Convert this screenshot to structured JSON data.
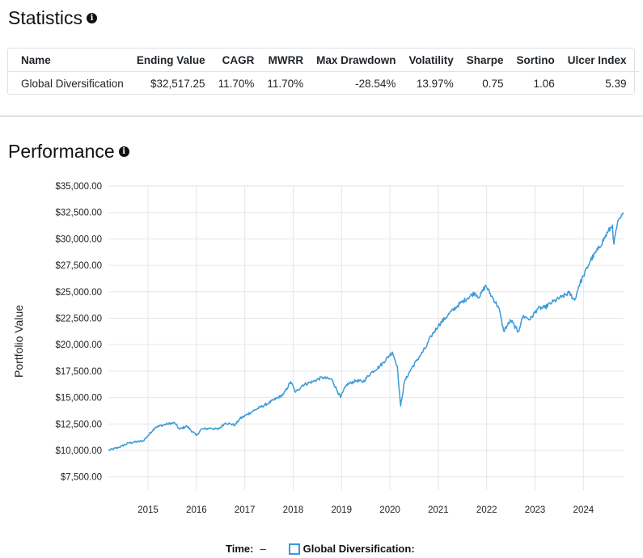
{
  "statistics": {
    "title": "Statistics",
    "headers": [
      "Name",
      "Ending Value",
      "CAGR",
      "MWRR",
      "Max Drawdown",
      "Volatility",
      "Sharpe",
      "Sortino",
      "Ulcer Index"
    ],
    "rows": [
      [
        "Global Diversification",
        "$32,517.25",
        "11.70%",
        "11.70%",
        "-28.54%",
        "13.97%",
        "0.75",
        "1.06",
        "5.39"
      ]
    ]
  },
  "performance": {
    "title": "Performance",
    "legend": {
      "time_label": "Time:",
      "time_value": "–",
      "series_label": "Global Diversification:"
    }
  },
  "chart_data": {
    "type": "line",
    "ylabel": "Portfolio Value",
    "xlabel": "",
    "ylim": [
      6250,
      35000
    ],
    "yticks": [
      7500,
      10000,
      12500,
      15000,
      17500,
      20000,
      22500,
      25000,
      27500,
      30000,
      32500,
      35000
    ],
    "ytick_labels": [
      "$7,500.00",
      "$10,000.00",
      "$12,500.00",
      "$15,000.00",
      "$17,500.00",
      "$20,000.00",
      "$22,500.00",
      "$25,000.00",
      "$27,500.00",
      "$30,000.00",
      "$32,500.00",
      "$35,000.00"
    ],
    "xlim": [
      2014.18,
      2024.83
    ],
    "xticks": [
      2015,
      2016,
      2017,
      2018,
      2019,
      2020,
      2021,
      2022,
      2023,
      2024
    ],
    "grid": true,
    "color": "#3a9ad9",
    "series": [
      {
        "name": "Global Diversification",
        "x": [
          2014.18,
          2014.4,
          2014.6,
          2014.9,
          2015.0,
          2015.15,
          2015.4,
          2015.55,
          2015.65,
          2015.8,
          2016.0,
          2016.1,
          2016.3,
          2016.45,
          2016.6,
          2016.8,
          2016.9,
          2017.2,
          2017.5,
          2017.8,
          2017.95,
          2018.05,
          2018.2,
          2018.4,
          2018.6,
          2018.8,
          2018.98,
          2019.1,
          2019.3,
          2019.45,
          2019.6,
          2019.8,
          2020.05,
          2020.15,
          2020.22,
          2020.3,
          2020.45,
          2020.6,
          2020.75,
          2020.85,
          2021.0,
          2021.2,
          2021.4,
          2021.6,
          2021.75,
          2021.85,
          2021.98,
          2022.1,
          2022.25,
          2022.35,
          2022.5,
          2022.65,
          2022.75,
          2022.9,
          2023.05,
          2023.2,
          2023.35,
          2023.55,
          2023.7,
          2023.82,
          2023.9,
          2024.0,
          2024.15,
          2024.3,
          2024.5,
          2024.6,
          2024.63,
          2024.7,
          2024.83
        ],
        "y": [
          10000,
          10300,
          10700,
          10900,
          11400,
          12200,
          12500,
          12600,
          12000,
          12300,
          11400,
          12000,
          12100,
          12000,
          12600,
          12400,
          13000,
          13800,
          14500,
          15300,
          16500,
          15500,
          16200,
          16500,
          16900,
          16700,
          15000,
          16200,
          16600,
          16500,
          17300,
          18000,
          19300,
          18000,
          14200,
          16500,
          17800,
          18800,
          19800,
          20800,
          21800,
          22800,
          23700,
          24400,
          24900,
          24500,
          25600,
          24600,
          23500,
          21300,
          22300,
          21200,
          22700,
          22400,
          23400,
          23500,
          24000,
          24500,
          24900,
          24200,
          25500,
          26500,
          28000,
          29000,
          30600,
          31300,
          29500,
          31400,
          32400
        ]
      }
    ]
  }
}
